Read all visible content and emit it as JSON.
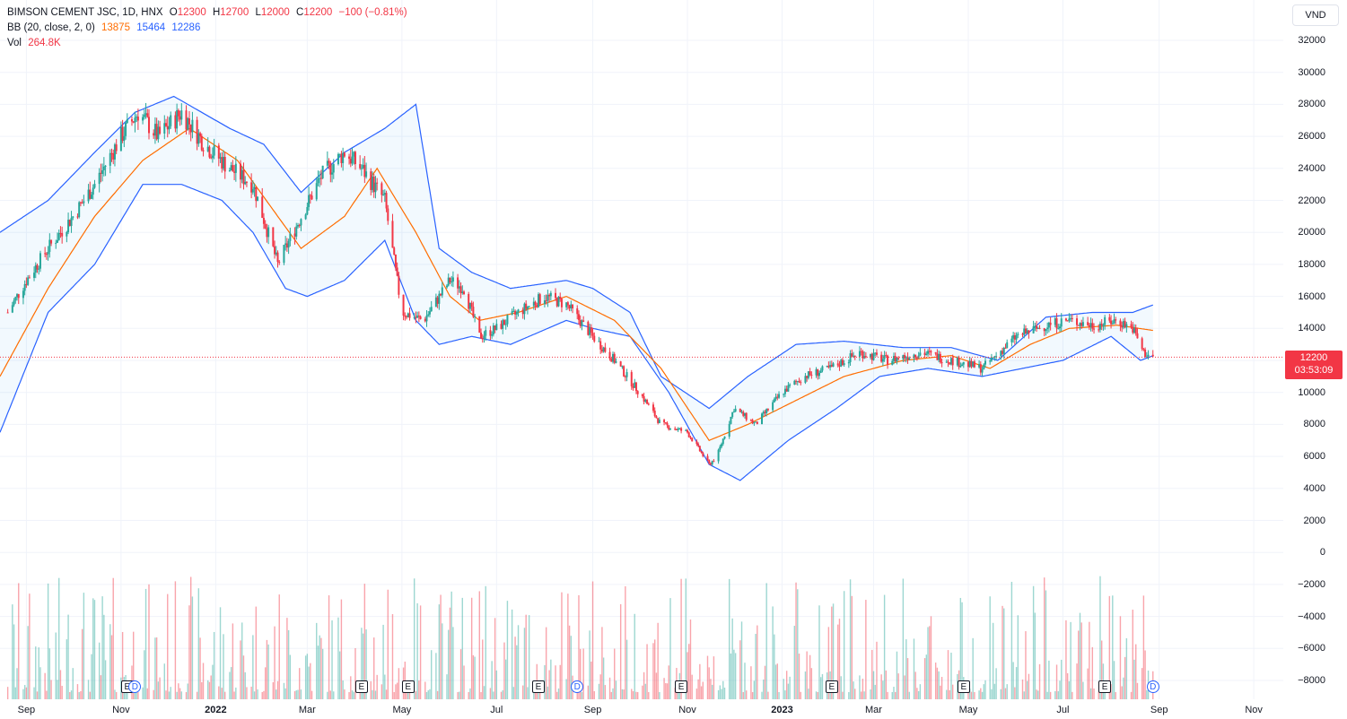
{
  "legend": {
    "symbol": "BIMSON CEMENT JSC, 1D, HNX",
    "o_label": "O",
    "o_value": "12300",
    "h_label": "H",
    "h_value": "12700",
    "l_label": "L",
    "l_value": "12000",
    "c_label": "C",
    "c_value": "12200",
    "change": "−100 (−0.81%)",
    "bb_label": "BB (20, close, 2, 0)",
    "bb_basis": "13875",
    "bb_upper": "15464",
    "bb_lower": "12286",
    "vol_label": "Vol",
    "vol_value": "264.8K"
  },
  "currency": "VND",
  "price_tag": {
    "price": "12200",
    "countdown": "03:53:09"
  },
  "y_axis_labels": [
    "32000",
    "30000",
    "28000",
    "26000",
    "24000",
    "22000",
    "20000",
    "18000",
    "16000",
    "14000",
    "12000",
    "10000",
    "8000",
    "6000",
    "4000",
    "2000",
    "0",
    "−2000",
    "−4000",
    "−6000",
    "−8000"
  ],
  "x_axis_labels": [
    {
      "text": "Sep",
      "bold": false
    },
    {
      "text": "Nov",
      "bold": false
    },
    {
      "text": "2022",
      "bold": true
    },
    {
      "text": "Mar",
      "bold": false
    },
    {
      "text": "May",
      "bold": false
    },
    {
      "text": "Jul",
      "bold": false
    },
    {
      "text": "Sep",
      "bold": false
    },
    {
      "text": "Nov",
      "bold": false
    },
    {
      "text": "2023",
      "bold": true
    },
    {
      "text": "Mar",
      "bold": false
    },
    {
      "text": "May",
      "bold": false
    },
    {
      "text": "Jul",
      "bold": false
    },
    {
      "text": "Sep",
      "bold": false
    },
    {
      "text": "Nov",
      "bold": false
    }
  ],
  "markers": [
    {
      "type": "E",
      "date": "2021-11-05"
    },
    {
      "type": "D",
      "date": "2021-11-10"
    },
    {
      "type": "E",
      "date": "2022-04-05"
    },
    {
      "type": "E",
      "date": "2022-05-05"
    },
    {
      "type": "E",
      "date": "2022-07-28"
    },
    {
      "type": "D",
      "date": "2022-08-22"
    },
    {
      "type": "E",
      "date": "2022-10-28"
    },
    {
      "type": "E",
      "date": "2023-02-02"
    },
    {
      "type": "E",
      "date": "2023-04-28"
    },
    {
      "type": "E",
      "date": "2023-07-28"
    },
    {
      "type": "D",
      "date": "2023-08-28"
    }
  ],
  "colors": {
    "up": "#26a69a",
    "down": "#f23645",
    "bb_basis": "#ff6d00",
    "bb_band": "#2962ff",
    "bb_fill": "#2196f3",
    "grid": "#f0f3fa",
    "price_line": "#f23645"
  },
  "chart_data": {
    "type": "line",
    "title": "BIMSON CEMENT JSC, 1D, HNX",
    "interval": "1D",
    "y_range": [
      -8800,
      33000
    ],
    "x_range": [
      "2021-08-15",
      "2023-11-20"
    ],
    "last_close": 12200,
    "series": [
      {
        "name": "Close",
        "x": [
          "2021-08-20",
          "2021-09-01",
          "2021-09-15",
          "2021-10-01",
          "2021-10-15",
          "2021-11-01",
          "2021-11-12",
          "2021-11-25",
          "2021-12-10",
          "2021-12-25",
          "2022-01-10",
          "2022-01-25",
          "2022-02-10",
          "2022-02-25",
          "2022-03-10",
          "2022-03-25",
          "2022-04-05",
          "2022-04-20",
          "2022-05-01",
          "2022-05-15",
          "2022-06-01",
          "2022-06-10",
          "2022-06-20",
          "2022-07-01",
          "2022-07-15",
          "2022-08-01",
          "2022-08-15",
          "2022-09-01",
          "2022-09-15",
          "2022-10-01",
          "2022-10-15",
          "2022-11-01",
          "2022-11-15",
          "2022-11-20",
          "2022-12-01",
          "2022-12-15",
          "2023-01-01",
          "2023-01-15",
          "2023-02-01",
          "2023-02-20",
          "2023-03-10",
          "2023-04-01",
          "2023-04-20",
          "2023-05-10",
          "2023-06-01",
          "2023-06-20",
          "2023-07-05",
          "2023-07-20",
          "2023-08-05",
          "2023-08-15",
          "2023-08-22",
          "2023-08-28"
        ],
        "y": [
          15000,
          17000,
          19000,
          21000,
          23000,
          26000,
          27500,
          26000,
          27500,
          25500,
          24000,
          23000,
          18000,
          21000,
          23500,
          25000,
          24000,
          22000,
          15000,
          14500,
          17000,
          16500,
          13500,
          14000,
          15000,
          16000,
          15500,
          13500,
          12000,
          10000,
          8000,
          7500,
          5500,
          6000,
          9000,
          8000,
          10000,
          11000,
          11500,
          12500,
          12000,
          12500,
          12000,
          11500,
          13500,
          14200,
          14500,
          14200,
          14500,
          14000,
          12500,
          12200
        ]
      },
      {
        "name": "BB basis",
        "x": [
          "2021-08-15",
          "2021-09-15",
          "2021-10-15",
          "2021-11-15",
          "2021-12-15",
          "2022-01-15",
          "2022-02-10",
          "2022-02-25",
          "2022-03-25",
          "2022-04-15",
          "2022-05-10",
          "2022-06-01",
          "2022-06-20",
          "2022-07-15",
          "2022-08-15",
          "2022-09-15",
          "2022-10-15",
          "2022-11-15",
          "2022-12-10",
          "2023-01-10",
          "2023-02-10",
          "2023-03-20",
          "2023-04-20",
          "2023-05-15",
          "2023-06-10",
          "2023-07-05",
          "2023-08-05",
          "2023-08-28"
        ],
        "y": [
          11000,
          16500,
          21000,
          24500,
          26500,
          24500,
          21000,
          19000,
          21000,
          24000,
          20000,
          16000,
          14500,
          15000,
          16000,
          14500,
          11500,
          7000,
          8000,
          9500,
          11000,
          12000,
          12300,
          11500,
          13000,
          14000,
          14200,
          13875
        ]
      },
      {
        "name": "BB upper",
        "x": [
          "2021-08-15",
          "2021-09-15",
          "2021-10-15",
          "2021-11-10",
          "2021-12-05",
          "2022-01-10",
          "2022-02-01",
          "2022-02-25",
          "2022-03-25",
          "2022-04-20",
          "2022-05-10",
          "2022-05-25",
          "2022-06-15",
          "2022-07-10",
          "2022-08-15",
          "2022-09-01",
          "2022-09-25",
          "2022-10-15",
          "2022-11-15",
          "2022-12-10",
          "2023-01-10",
          "2023-02-10",
          "2023-03-20",
          "2023-04-20",
          "2023-05-20",
          "2023-06-20",
          "2023-07-20",
          "2023-08-15",
          "2023-08-28"
        ],
        "y": [
          20000,
          22000,
          25000,
          27500,
          28500,
          26500,
          25500,
          22500,
          25000,
          26500,
          28000,
          19000,
          17500,
          16500,
          17000,
          16500,
          15000,
          11000,
          9000,
          11000,
          13000,
          13200,
          12800,
          12800,
          12000,
          14700,
          15000,
          15000,
          15464
        ]
      },
      {
        "name": "BB lower",
        "x": [
          "2021-08-15",
          "2021-09-15",
          "2021-10-15",
          "2021-11-15",
          "2021-12-10",
          "2022-01-05",
          "2022-01-25",
          "2022-02-15",
          "2022-03-01",
          "2022-03-25",
          "2022-04-20",
          "2022-05-10",
          "2022-05-25",
          "2022-06-15",
          "2022-07-10",
          "2022-08-15",
          "2022-09-01",
          "2022-09-25",
          "2022-10-20",
          "2022-11-15",
          "2022-12-05",
          "2023-01-05",
          "2023-02-05",
          "2023-03-05",
          "2023-04-05",
          "2023-05-10",
          "2023-06-05",
          "2023-07-01",
          "2023-08-01",
          "2023-08-20",
          "2023-08-28"
        ],
        "y": [
          7500,
          15000,
          18000,
          23000,
          23000,
          22000,
          20000,
          16500,
          16000,
          17000,
          19500,
          14500,
          13000,
          13500,
          13000,
          14500,
          14000,
          13500,
          10000,
          5500,
          4500,
          7000,
          9000,
          11000,
          11500,
          11000,
          11500,
          12000,
          13500,
          12000,
          12286
        ]
      }
    ]
  }
}
